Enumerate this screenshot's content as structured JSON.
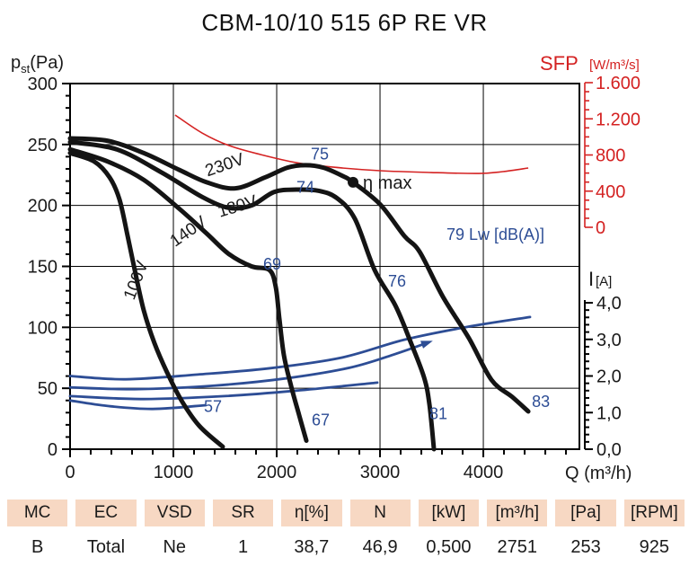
{
  "title": "CBM-10/10 515 6P RE VR",
  "colors": {
    "curve_black": "#141414",
    "curve_blue": "#2d4d95",
    "accent_red": "#d42222",
    "table_header_bg": "#f7d8c3",
    "text": "#1a1a1a"
  },
  "chart_data": {
    "type": "line",
    "title": "CBM-10/10 515 6P RE VR",
    "x_axis": {
      "label": "Q (m³/h)",
      "min": 0,
      "max": 4930,
      "major_ticks": [
        0,
        1000,
        2000,
        3000,
        4000
      ],
      "tick_labels": [
        "0",
        "1000",
        "2000",
        "3000",
        "4000"
      ],
      "minor_step": 200
    },
    "y_axis_pressure": {
      "label_main": "p",
      "label_sub": "st",
      "label_unit": "(Pa)",
      "min": 0,
      "max": 300,
      "major_ticks": [
        300,
        250,
        200,
        150,
        100,
        50,
        0
      ],
      "tick_labels": [
        "300",
        "250",
        "200",
        "150",
        "100",
        "50",
        "0"
      ],
      "minor_step": 10
    },
    "y_axis_sfp": {
      "label": "SFP",
      "unit": "[W/m³/s]",
      "min": 0,
      "max": 1600,
      "major_ticks": [
        1600,
        1200,
        800,
        400,
        0
      ],
      "tick_labels": [
        "1.600",
        "1.200",
        "800",
        "400",
        "0"
      ],
      "minor_step": 100
    },
    "y_axis_current": {
      "label": "I",
      "unit": "[A]",
      "min": 0,
      "max": 4,
      "major_ticks": [
        4,
        3,
        2,
        1,
        0
      ],
      "tick_labels": [
        "4,0",
        "3,0",
        "2,0",
        "1,0",
        "0,0"
      ],
      "minor_step": 0.2
    },
    "pressure_curves": [
      {
        "name": "230V",
        "label": "230V",
        "label_q": 1513,
        "label_pa": 229,
        "label_angle": -19,
        "points": [
          [
            0,
            255
          ],
          [
            365,
            253
          ],
          [
            713,
            243
          ],
          [
            1061,
            229
          ],
          [
            1322,
            219
          ],
          [
            1600,
            214
          ],
          [
            1887,
            223
          ],
          [
            2104,
            231
          ],
          [
            2278,
            233
          ],
          [
            2452,
            231
          ],
          [
            2643,
            224
          ],
          [
            2739,
            219
          ],
          [
            3000,
            201
          ],
          [
            3235,
            175
          ],
          [
            3383,
            162
          ],
          [
            3609,
            125
          ],
          [
            3861,
            91
          ],
          [
            4078,
            57
          ],
          [
            4278,
            43
          ],
          [
            4435,
            31
          ]
        ]
      },
      {
        "name": "180V",
        "label": "180V",
        "label_q": 1635,
        "label_pa": 195,
        "label_angle": -17,
        "points": [
          [
            0,
            252
          ],
          [
            452,
            246
          ],
          [
            887,
            227
          ],
          [
            1278,
            207
          ],
          [
            1539,
            198
          ],
          [
            1757,
            200
          ],
          [
            1974,
            211
          ],
          [
            2191,
            213
          ],
          [
            2409,
            212
          ],
          [
            2583,
            206
          ],
          [
            2757,
            189
          ],
          [
            2948,
            147
          ],
          [
            3148,
            118
          ],
          [
            3296,
            88
          ],
          [
            3426,
            59
          ],
          [
            3478,
            37
          ],
          [
            3522,
            0
          ]
        ]
      },
      {
        "name": "140V",
        "label": "140V",
        "label_q": 1174,
        "label_pa": 175,
        "label_angle": -35,
        "points": [
          [
            0,
            246
          ],
          [
            365,
            236
          ],
          [
            713,
            221
          ],
          [
            1061,
            197
          ],
          [
            1322,
            177
          ],
          [
            1539,
            160
          ],
          [
            1757,
            150
          ],
          [
            1930,
            147
          ],
          [
            1991,
            133
          ],
          [
            2026,
            107
          ],
          [
            2070,
            77
          ],
          [
            2139,
            52
          ],
          [
            2217,
            28
          ],
          [
            2287,
            7
          ]
        ]
      },
      {
        "name": "100V",
        "label": "100V",
        "label_q": 687,
        "label_pa": 137,
        "label_angle": -69,
        "points": [
          [
            0,
            243
          ],
          [
            235,
            236
          ],
          [
            383,
            223
          ],
          [
            478,
            205
          ],
          [
            557,
            175
          ],
          [
            626,
            147
          ],
          [
            713,
            114
          ],
          [
            817,
            87
          ],
          [
            939,
            63
          ],
          [
            1078,
            40
          ],
          [
            1252,
            19
          ],
          [
            1478,
            2
          ]
        ]
      }
    ],
    "sfp_curve": {
      "name": "SFP",
      "points": [
        [
          1017,
          1242
        ],
        [
          1278,
          1043
        ],
        [
          1539,
          904
        ],
        [
          1843,
          805
        ],
        [
          2191,
          715
        ],
        [
          2539,
          666
        ],
        [
          3000,
          626
        ],
        [
          3496,
          606
        ],
        [
          3957,
          596
        ],
        [
          4191,
          616
        ],
        [
          4435,
          656
        ]
      ]
    },
    "current_curves": [
      {
        "name": "I-230V",
        "arrow": false,
        "points": [
          [
            0,
            2.0
          ],
          [
            539,
            1.91
          ],
          [
            1235,
            2.04
          ],
          [
            1930,
            2.21
          ],
          [
            2626,
            2.5
          ],
          [
            3235,
            2.99
          ],
          [
            3843,
            3.34
          ],
          [
            4452,
            3.61
          ]
        ]
      },
      {
        "name": "I-180V",
        "arrow": true,
        "points": [
          [
            0,
            1.69
          ],
          [
            626,
            1.64
          ],
          [
            1409,
            1.74
          ],
          [
            2104,
            1.94
          ],
          [
            2713,
            2.23
          ],
          [
            3148,
            2.6
          ],
          [
            3470,
            2.92
          ]
        ]
      },
      {
        "name": "I-140V",
        "arrow": false,
        "points": [
          [
            0,
            1.45
          ],
          [
            713,
            1.37
          ],
          [
            1496,
            1.45
          ],
          [
            2191,
            1.6
          ],
          [
            2974,
            1.82
          ]
        ]
      },
      {
        "name": "I-100V",
        "arrow": false,
        "points": [
          [
            0,
            1.33
          ],
          [
            365,
            1.18
          ],
          [
            800,
            1.1
          ],
          [
            1304,
            1.2
          ]
        ]
      }
    ],
    "noise_labels": [
      {
        "text": "75",
        "q": 2417,
        "pa": 242,
        "anchor": "middle"
      },
      {
        "text": "74",
        "q": 2278,
        "pa": 215,
        "anchor": "middle"
      },
      {
        "text": "69",
        "q": 1957,
        "pa": 152,
        "anchor": "middle"
      },
      {
        "text": "76",
        "q": 3165,
        "pa": 138,
        "anchor": "middle"
      },
      {
        "text": "79 Lw [dB(A)]",
        "q": 3643,
        "pa": 176,
        "anchor": "start"
      },
      {
        "text": "57",
        "q": 1383,
        "pa": 35,
        "anchor": "middle"
      },
      {
        "text": "67",
        "q": 2426,
        "pa": 24,
        "anchor": "middle"
      },
      {
        "text": "81",
        "q": 3565,
        "pa": 29,
        "anchor": "middle"
      },
      {
        "text": "83",
        "q": 4557,
        "pa": 39,
        "anchor": "middle"
      }
    ],
    "eta_max": {
      "label": "η max",
      "q": 2739,
      "pa": 219
    }
  },
  "table": {
    "headers": [
      "MC",
      "EC",
      "VSD",
      "SR",
      "η[%]",
      "N",
      "[kW]",
      "[m³/h]",
      "[Pa]",
      "[RPM]"
    ],
    "values": [
      "B",
      "Total",
      "Ne",
      "1",
      "38,7",
      "46,9",
      "0,500",
      "2751",
      "253",
      "925"
    ]
  }
}
